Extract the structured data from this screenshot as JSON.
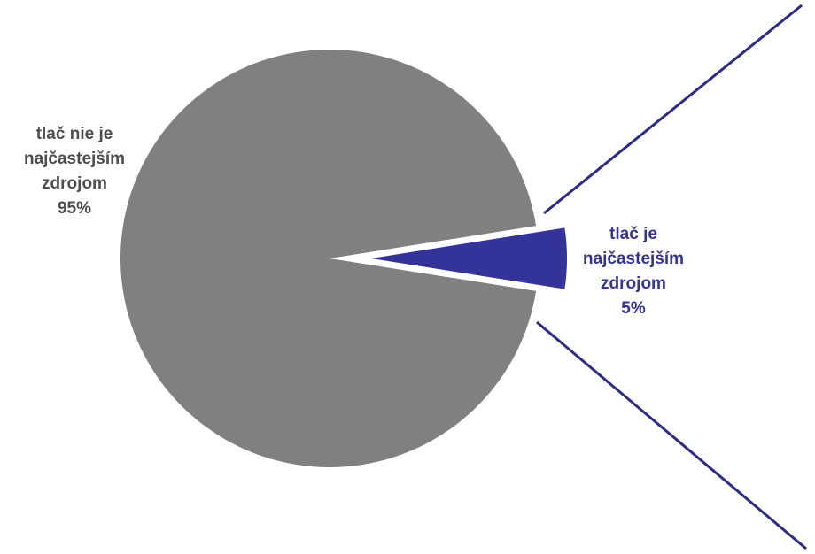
{
  "chart_data": {
    "type": "pie",
    "slices": [
      {
        "label_lines": [
          "tlač nie je",
          "najčastejším",
          "zdrojom"
        ],
        "value": 95,
        "pct_label": "95%",
        "color": "#808080",
        "text_color": "#4d4d4d",
        "exploded": false
      },
      {
        "label_lines": [
          "tlač je",
          "najčastejším",
          "zdrojom"
        ],
        "value": 5,
        "pct_label": "5%",
        "color": "#333399",
        "text_color": "#333399",
        "exploded": true
      }
    ],
    "connector_color": "#2b2b8c"
  }
}
